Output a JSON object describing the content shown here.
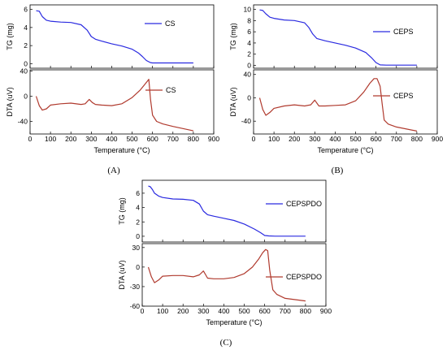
{
  "panels": [
    {
      "label": "(A)",
      "xlabel": "Temperature (°C)",
      "xticks": [
        0,
        100,
        200,
        300,
        400,
        500,
        600,
        700,
        800,
        900
      ],
      "tg": {
        "ylabel": "TG (mg)",
        "yticks": [
          0,
          2,
          4,
          6
        ],
        "legend": "CS",
        "color": "#2a2ae0"
      },
      "dta": {
        "ylabel": "DTA (uV)",
        "yticks": [
          -40,
          0,
          40
        ],
        "legend": "CS",
        "color": "#b03a2e"
      }
    },
    {
      "label": "(B)",
      "xlabel": "Temperature (°C)",
      "xticks": [
        0,
        100,
        200,
        300,
        400,
        500,
        600,
        700,
        800,
        900
      ],
      "tg": {
        "ylabel": "TG (mg)",
        "yticks": [
          0,
          2,
          4,
          6,
          8,
          10
        ],
        "legend": "CEPS",
        "color": "#2a2ae0"
      },
      "dta": {
        "ylabel": "DTA (uV)",
        "yticks": [
          -40,
          0,
          40
        ],
        "legend": "CEPS",
        "color": "#b03a2e"
      }
    },
    {
      "label": "(C)",
      "xlabel": "Temperature (°C)",
      "xticks": [
        0,
        100,
        200,
        300,
        400,
        500,
        600,
        700,
        800,
        900
      ],
      "tg": {
        "ylabel": "TG (mg)",
        "yticks": [
          0,
          2,
          4,
          6
        ],
        "legend": "CEPSPDO",
        "color": "#2a2ae0"
      },
      "dta": {
        "ylabel": "DTA (uV)",
        "yticks": [
          -60,
          -30,
          0,
          30
        ],
        "legend": "CEPSPDO",
        "color": "#b03a2e"
      }
    }
  ],
  "chart_data": [
    {
      "type": "line",
      "series": [
        {
          "name": "CS",
          "x": [
            30,
            45,
            60,
            80,
            100,
            150,
            200,
            250,
            280,
            300,
            320,
            350,
            400,
            450,
            500,
            530,
            550,
            570,
            590,
            600,
            620,
            700,
            800
          ],
          "y": [
            5.85,
            5.8,
            5.2,
            4.8,
            4.7,
            4.6,
            4.55,
            4.3,
            3.7,
            3.0,
            2.7,
            2.5,
            2.2,
            1.95,
            1.6,
            1.2,
            0.8,
            0.35,
            0.12,
            0.08,
            0.08,
            0.08,
            0.08
          ]
        }
      ],
      "xlim": [
        0,
        900
      ],
      "ylim": [
        -0.5,
        6.5
      ],
      "ylabel": "TG (mg)"
    },
    {
      "type": "line",
      "series": [
        {
          "name": "CS",
          "x": [
            30,
            45,
            60,
            80,
            100,
            150,
            200,
            250,
            270,
            290,
            305,
            320,
            350,
            400,
            450,
            500,
            520,
            540,
            560,
            575,
            582,
            590,
            600,
            620,
            650,
            700,
            800
          ],
          "y": [
            0,
            -15,
            -22,
            -20,
            -14,
            -12,
            -11,
            -13,
            -12,
            -5,
            -10,
            -13,
            -14,
            -15,
            -12,
            -2,
            4,
            10,
            18,
            24,
            27,
            -5,
            -30,
            -40,
            -44,
            -48,
            -55
          ]
        }
      ],
      "xlim": [
        0,
        900
      ],
      "ylim": [
        -60,
        42
      ],
      "ylabel": "DTA (uV)"
    },
    {
      "type": "line",
      "series": [
        {
          "name": "CEPS",
          "x": [
            30,
            45,
            60,
            80,
            100,
            150,
            200,
            250,
            270,
            290,
            310,
            350,
            400,
            450,
            500,
            550,
            580,
            600,
            620,
            650,
            700,
            800
          ],
          "y": [
            9.9,
            9.8,
            9.2,
            8.6,
            8.4,
            8.1,
            8.0,
            7.6,
            6.8,
            5.6,
            4.8,
            4.4,
            4.0,
            3.6,
            3.1,
            2.3,
            1.3,
            0.5,
            0.1,
            0.05,
            0.05,
            0.05
          ]
        }
      ],
      "xlim": [
        0,
        900
      ],
      "ylim": [
        -0.5,
        10.8
      ],
      "ylabel": "TG (mg)"
    },
    {
      "type": "line",
      "series": [
        {
          "name": "CEPS",
          "x": [
            30,
            45,
            60,
            80,
            100,
            150,
            200,
            250,
            280,
            300,
            320,
            350,
            400,
            450,
            500,
            540,
            570,
            590,
            605,
            620,
            630,
            640,
            660,
            700,
            800
          ],
          "y": [
            0,
            -20,
            -30,
            -25,
            -18,
            -14,
            -12,
            -14,
            -12,
            -4,
            -14,
            -14,
            -13,
            -12,
            -5,
            10,
            25,
            33,
            33,
            20,
            -10,
            -38,
            -45,
            -50,
            -57
          ]
        }
      ],
      "xlim": [
        0,
        900
      ],
      "ylim": [
        -62,
        48
      ],
      "ylabel": "DTA (uV)"
    },
    {
      "type": "line",
      "series": [
        {
          "name": "CEPSPDO",
          "x": [
            30,
            40,
            50,
            60,
            80,
            100,
            150,
            200,
            250,
            280,
            300,
            320,
            350,
            400,
            450,
            500,
            550,
            580,
            600,
            620,
            650,
            700,
            800
          ],
          "y": [
            7.0,
            6.9,
            6.5,
            6.0,
            5.6,
            5.4,
            5.2,
            5.15,
            5.0,
            4.5,
            3.5,
            3.0,
            2.8,
            2.5,
            2.2,
            1.7,
            1.0,
            0.5,
            0.1,
            0.05,
            0.02,
            0.02,
            0.02
          ]
        }
      ],
      "xlim": [
        0,
        900
      ],
      "ylim": [
        -0.8,
        7.8
      ],
      "ylabel": "TG (mg)"
    },
    {
      "type": "line",
      "series": [
        {
          "name": "CEPSPDO",
          "x": [
            30,
            45,
            60,
            80,
            100,
            150,
            200,
            250,
            280,
            300,
            320,
            350,
            400,
            450,
            500,
            540,
            570,
            590,
            605,
            615,
            625,
            640,
            660,
            700,
            800
          ],
          "y": [
            0,
            -15,
            -24,
            -20,
            -14,
            -13,
            -13,
            -15,
            -12,
            -6,
            -17,
            -18,
            -18,
            -16,
            -10,
            0,
            12,
            22,
            27,
            25,
            -5,
            -35,
            -42,
            -48,
            -52
          ]
        }
      ],
      "xlim": [
        0,
        900
      ],
      "ylim": [
        -60,
        36
      ],
      "ylabel": "DTA (uV)"
    }
  ]
}
